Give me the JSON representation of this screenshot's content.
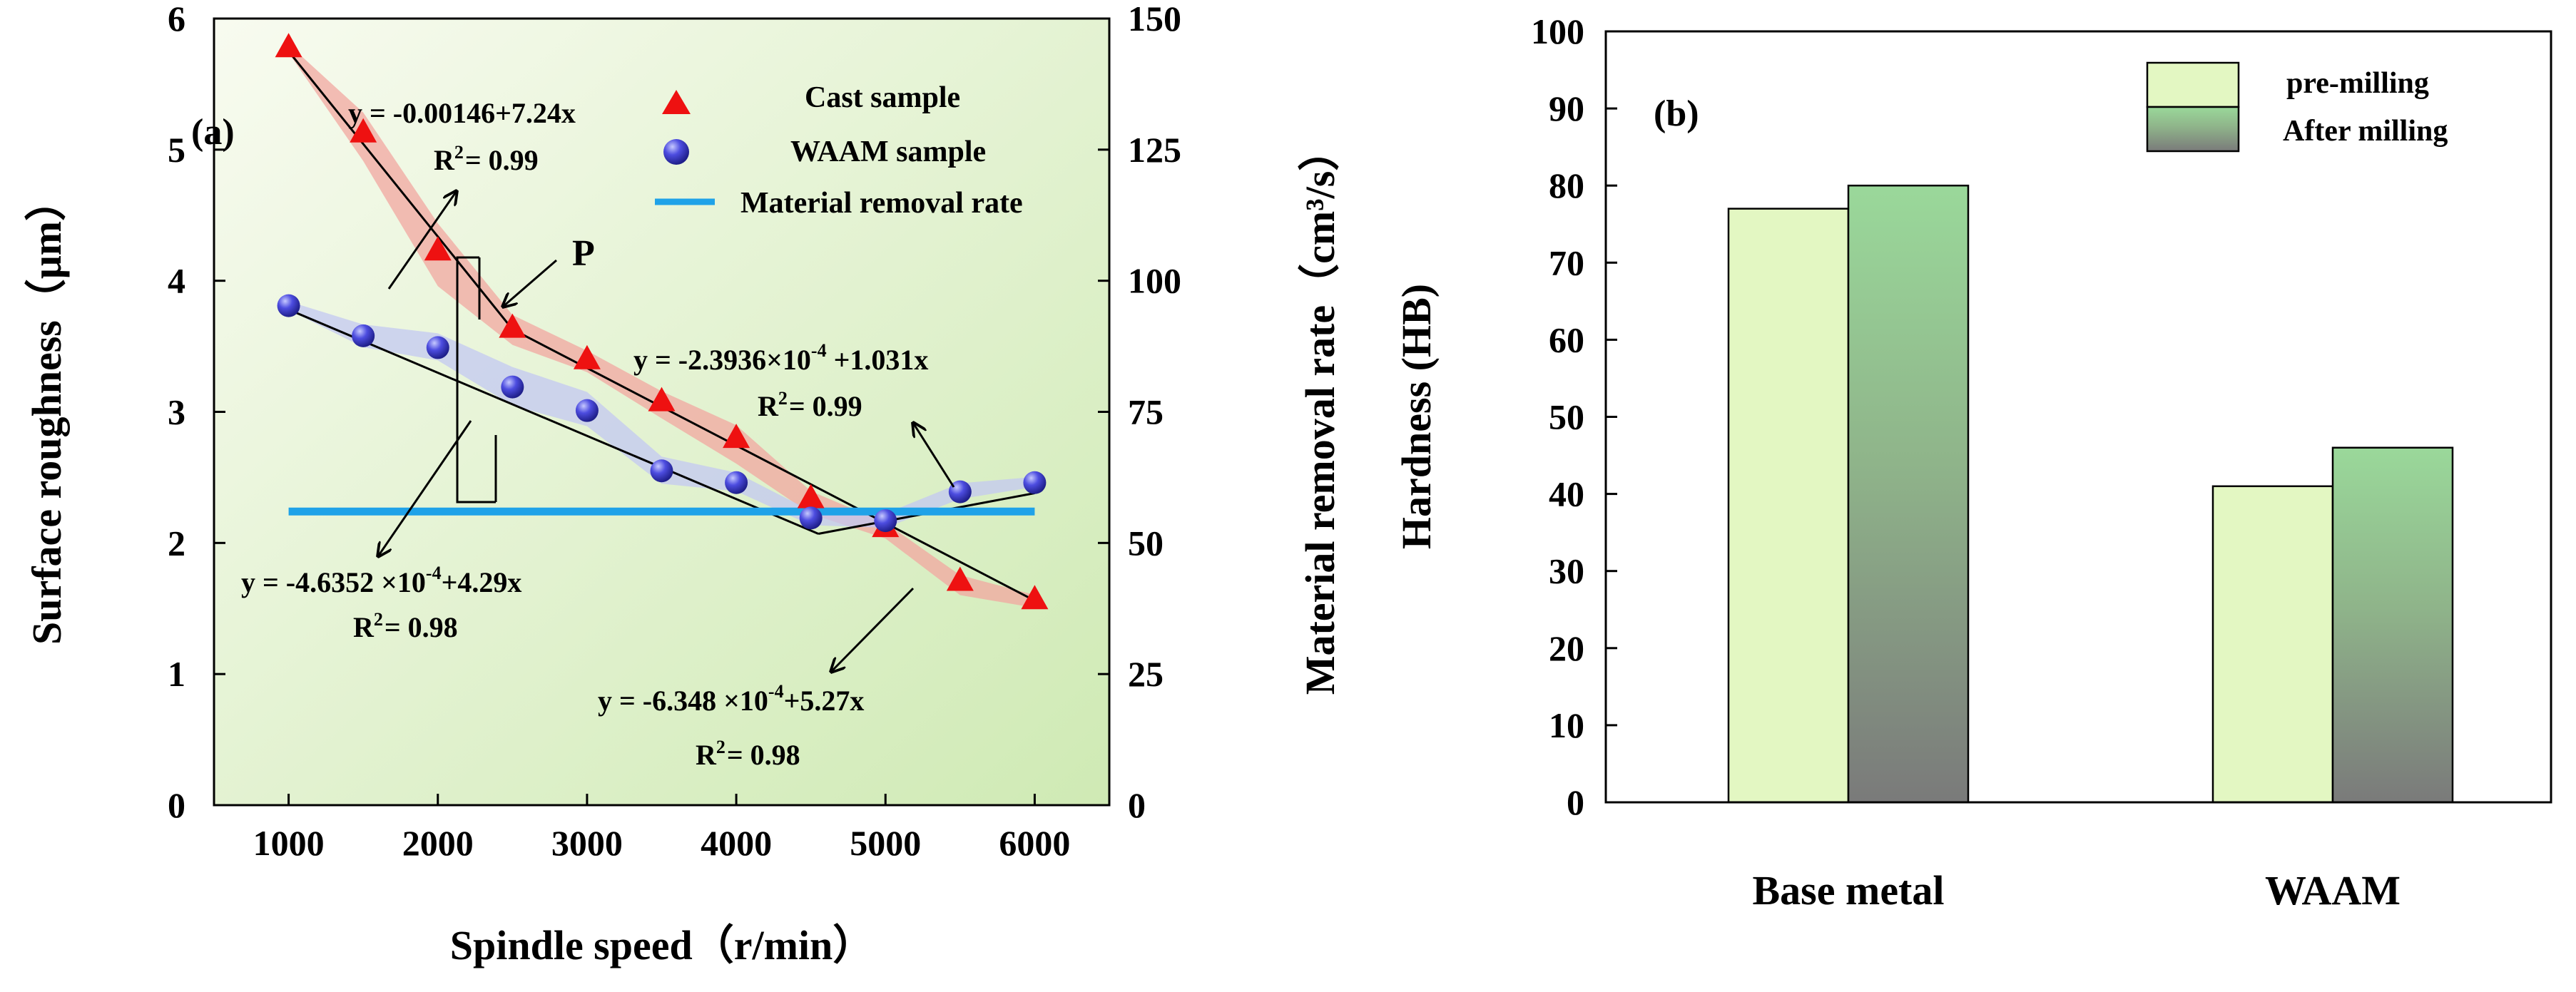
{
  "chart_data": [
    {
      "panel": "(a)",
      "type": "scatter",
      "xlabel": "Spindle speed（r/min）",
      "ylabel": "Surface roughness（μm）",
      "y2label": "Material removal rate（cm³/s）",
      "xlim": [
        500,
        6500
      ],
      "ylim": [
        0,
        6
      ],
      "y2lim": [
        0,
        150
      ],
      "xticks": [
        1000,
        2000,
        3000,
        4000,
        5000,
        6000
      ],
      "yticks": [
        0,
        1,
        2,
        3,
        4,
        5,
        6
      ],
      "y2ticks": [
        0,
        25,
        50,
        75,
        100,
        125,
        150
      ],
      "series": [
        {
          "name": "Cast  sample",
          "marker": "triangle",
          "color": "#ee1111",
          "band_color": "#f2a7a0",
          "x": [
            1000,
            1500,
            2000,
            2500,
            3000,
            3500,
            4000,
            4500,
            5000,
            5500,
            6000
          ],
          "y": [
            5.77,
            5.12,
            4.22,
            3.63,
            3.39,
            3.07,
            2.79,
            2.33,
            2.11,
            1.7,
            1.56
          ]
        },
        {
          "name": "WAAM sample",
          "marker": "circle",
          "color": "#3b3bd8",
          "band_color": "#c3c8f2",
          "x": [
            1000,
            1500,
            2000,
            2500,
            3000,
            3500,
            4000,
            4500,
            5000,
            5500,
            6000
          ],
          "y": [
            3.81,
            3.58,
            3.49,
            3.19,
            3.01,
            2.55,
            2.46,
            2.19,
            2.17,
            2.39,
            2.46
          ]
        },
        {
          "name": "Material removal rate",
          "marker": "line",
          "color": "#1fa2e8",
          "axis": "right",
          "x": [
            1000,
            6000
          ],
          "y": [
            56,
            56
          ]
        }
      ],
      "fit_lines": [
        {
          "points": [
            [
              1000,
              5.75
            ],
            [
              2500,
              3.63
            ]
          ]
        },
        {
          "points": [
            [
              2500,
              3.63
            ],
            [
              6000,
              1.56
            ]
          ]
        },
        {
          "points": [
            [
              1000,
              3.78
            ],
            [
              4550,
              2.07
            ]
          ]
        },
        {
          "points": [
            [
              4550,
              2.07
            ],
            [
              6000,
              2.38
            ]
          ]
        }
      ],
      "annotations": [
        {
          "id": "eq1",
          "main": "y = -0.00146+7.24x",
          "r2": "R",
          "r2_sup": "2",
          "r2_val": "= 0.99"
        },
        {
          "id": "eq2",
          "main_pre": "y = -2.3936×10",
          "exp": "-4",
          "main_post": " +1.031x",
          "r2": "R",
          "r2_sup": "2",
          "r2_val": "= 0.99"
        },
        {
          "id": "eq3",
          "main_pre": "y = -4.6352 ×10",
          "exp": "-4",
          "main_post": "+4.29x",
          "r2": "R",
          "r2_sup": "2",
          "r2_val": "= 0.98"
        },
        {
          "id": "eq4",
          "main_pre": "y = -6.348 ×10",
          "exp": "-4",
          "main_post": "+5.27x",
          "r2": "R",
          "r2_sup": "2",
          "r2_val": "= 0.98"
        },
        {
          "id": "point-p",
          "text": "P"
        }
      ]
    },
    {
      "panel": "(b)",
      "type": "bar",
      "ylabel": "Hardness (HB)",
      "ylim": [
        0,
        100
      ],
      "yticks": [
        0,
        10,
        20,
        30,
        40,
        50,
        60,
        70,
        80,
        90,
        100
      ],
      "categories": [
        "Base metal",
        "WAAM"
      ],
      "series": [
        {
          "name": "pre-milling",
          "values": [
            77,
            41
          ],
          "color": "#e3f7c2"
        },
        {
          "name": "After milling",
          "values": [
            80,
            46
          ],
          "gradient": [
            "#9ad89a",
            "#7a7a7a"
          ]
        }
      ]
    }
  ]
}
